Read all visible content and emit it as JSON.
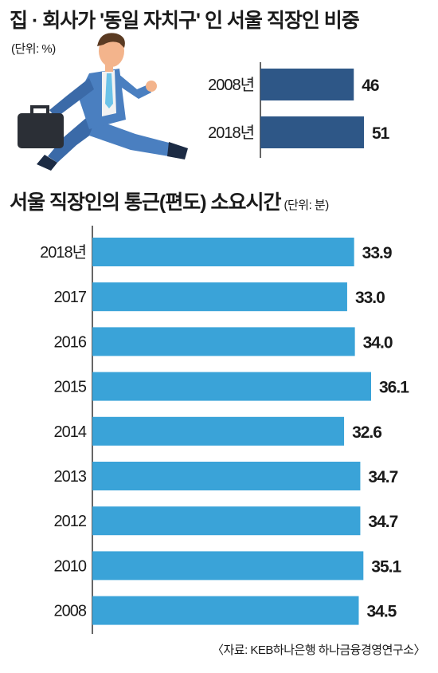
{
  "title_top": "집 · 회사가 '동일 자치구' 인 서울 직장인 비중",
  "unit_top": "(단위: %)",
  "title_bottom": "서울 직장인의 통근(편도) 소요시간",
  "unit_bottom": "(단위: 분)",
  "source": "〈자료: KEB하나은행 하나금융경영연구소〉",
  "colors": {
    "top_bar": "#2e5787",
    "bottom_bar": "#3aa3d8",
    "axis": "#333333"
  },
  "illustration": "running-businessman-with-briefcase",
  "chart_data": [
    {
      "type": "bar",
      "orientation": "horizontal",
      "title": "집 · 회사가 '동일 자치구' 인 서울 직장인 비중",
      "unit": "%",
      "categories": [
        "2008년",
        "2018년"
      ],
      "values": [
        46,
        51
      ],
      "value_labels": [
        "46",
        "51"
      ]
    },
    {
      "type": "bar",
      "orientation": "horizontal",
      "title": "서울 직장인의 통근(편도) 소요시간",
      "unit": "분",
      "categories": [
        "2018년",
        "2017",
        "2016",
        "2015",
        "2014",
        "2013",
        "2012",
        "2010",
        "2008"
      ],
      "values": [
        33.9,
        33.0,
        34.0,
        36.1,
        32.6,
        34.7,
        34.7,
        35.1,
        34.5
      ],
      "value_labels": [
        "33.9",
        "33.0",
        "34.0",
        "36.1",
        "32.6",
        "34.7",
        "34.7",
        "35.1",
        "34.5"
      ]
    }
  ]
}
